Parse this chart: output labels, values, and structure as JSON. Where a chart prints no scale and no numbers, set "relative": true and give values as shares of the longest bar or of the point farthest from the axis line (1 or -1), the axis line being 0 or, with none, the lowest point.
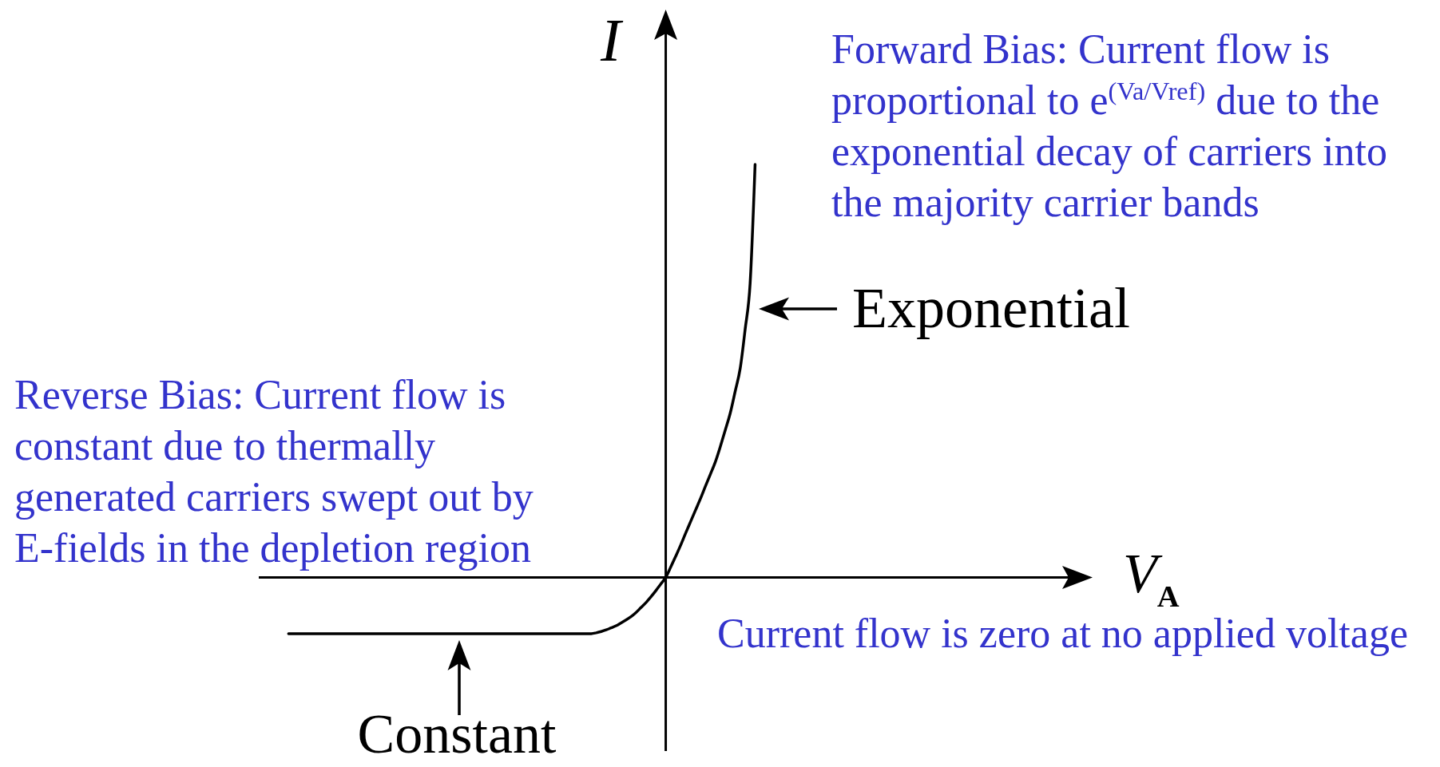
{
  "chart_data": {
    "type": "line",
    "relative": true,
    "color": "#000000",
    "xlabel": "V$_{A}$",
    "ylabel": "I",
    "categories": [
      null,
      null,
      null,
      null,
      null,
      null,
      null,
      null,
      null,
      null,
      null,
      null,
      null,
      null,
      null,
      null,
      null,
      null,
      null,
      null,
      null,
      null,
      null,
      null,
      null,
      null,
      null,
      null,
      null,
      null,
      null,
      null,
      null,
      null,
      null,
      null,
      null,
      null,
      null,
      null,
      null,
      null,
      null,
      null,
      null,
      null,
      null,
      null,
      null,
      null,
      null,
      null,
      null,
      null,
      null,
      null,
      null,
      null,
      null,
      null,
      null,
      null,
      null,
      null,
      null,
      null,
      null,
      null,
      null,
      null,
      null,
      null,
      null,
      null,
      null,
      null,
      null,
      null,
      null,
      null,
      null,
      null,
      null,
      null,
      null,
      null,
      null,
      null,
      null,
      null,
      null,
      null,
      null,
      null,
      null,
      null,
      null,
      null,
      null,
      null,
      null,
      null,
      null,
      null,
      null,
      null,
      null,
      null,
      null,
      null,
      null,
      null,
      null,
      null,
      null,
      null,
      null,
      null,
      null,
      null,
      null,
      null,
      null,
      null,
      null,
      null,
      null,
      null,
      null,
      null,
      null,
      null,
      null,
      null,
      null,
      null,
      null,
      null,
      null,
      null,
      null,
      null,
      null,
      null,
      null,
      null,
      null,
      null,
      null,
      null,
      null,
      null,
      null,
      null,
      null,
      null,
      null,
      null,
      null,
      null,
      null,
      null,
      null,
      null,
      null,
      null,
      null,
      null,
      null
    ],
    "values": [
      null,
      null,
      null,
      null,
      null,
      null,
      -0.136,
      -0.136,
      -0.136,
      -0.136,
      -0.136,
      -0.136,
      -0.136,
      -0.136,
      -0.136,
      -0.136,
      -0.136,
      -0.136,
      -0.136,
      -0.136,
      -0.136,
      -0.136,
      -0.136,
      -0.136,
      -0.136,
      -0.136,
      -0.136,
      -0.136,
      -0.136,
      -0.136,
      -0.136,
      -0.136,
      -0.136,
      -0.136,
      -0.136,
      -0.136,
      -0.136,
      -0.136,
      -0.136,
      -0.136,
      -0.136,
      -0.136,
      -0.136,
      -0.136,
      -0.136,
      -0.136,
      -0.136,
      -0.136,
      -0.136,
      -0.136,
      -0.136,
      -0.136,
      -0.136,
      -0.136,
      -0.136,
      -0.136,
      -0.136,
      -0.136,
      -0.136,
      -0.136,
      -0.136,
      -0.136,
      -0.136,
      -0.136,
      -0.136,
      -0.136,
      -0.136,
      -0.136,
      -0.134,
      -0.131,
      -0.127,
      -0.122,
      -0.117,
      -0.11,
      -0.103,
      -0.095,
      -0.085,
      -0.073,
      -0.061,
      -0.047,
      -0.032,
      -0.016,
      0,
      0.025,
      0.051,
      0.078,
      0.107,
      0.135,
      0.163,
      0.191,
      0.221,
      0.25,
      0.28,
      0.317,
      0.357,
      0.398,
      0.451,
      0.506,
      0.601,
      0.712,
      1,
      null,
      null,
      null,
      null,
      null,
      null,
      null,
      null,
      null,
      null,
      null,
      null,
      null,
      null,
      null,
      null,
      null,
      null,
      null,
      null,
      null,
      null,
      null,
      null,
      null,
      null,
      null,
      null,
      null,
      null,
      null,
      null,
      null,
      null,
      null,
      null,
      null,
      null,
      null,
      null,
      null,
      null,
      null,
      null,
      null,
      null,
      null,
      null,
      null,
      null,
      null,
      null,
      null,
      null,
      null,
      null,
      null,
      null,
      null,
      null,
      null,
      null,
      null,
      null,
      null,
      null,
      null,
      null
    ],
    "annotations": [
      "Forward Bias: Current flow is proportional to e$^{(Va/Vref)}$ due to the exponential decay of carriers into the majority carrier bands",
      "Reverse Bias: Current flow is constant due to thermally generated carriers swept out by E-fields in the depletion region",
      "Current flow is zero at no applied voltage",
      "Exponential",
      {
        "text": "Constant",
        "y": -0.136
      }
    ]
  }
}
